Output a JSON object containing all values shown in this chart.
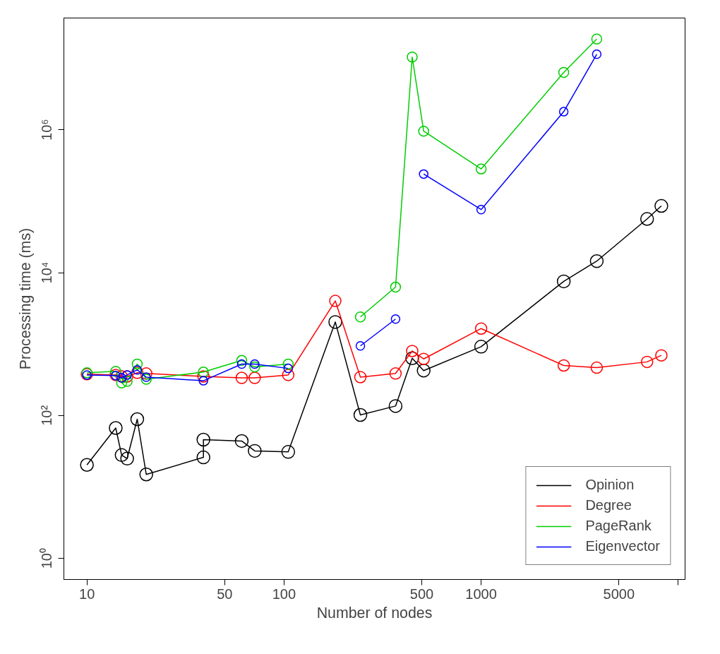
{
  "chart_data": {
    "type": "line",
    "xlabel": "Number of nodes",
    "ylabel": "Processing time (ms)",
    "log": "xy",
    "grid": false,
    "legend": "bottom right",
    "marker": "circle",
    "line_style": "solid",
    "xlim": [
      7.64,
      10830
    ],
    "ylim": [
      0.508,
      36600000
    ],
    "xticks": [
      10,
      50,
      100,
      500,
      1000,
      5000,
      {
        "value": 10000,
        "label": null
      }
    ],
    "yticks": [
      {
        "value": 1,
        "label": "10⁰"
      },
      {
        "value": 100,
        "label": "10²"
      },
      {
        "value": 10000,
        "label": "10⁴"
      },
      {
        "value": 1000000,
        "label": "10⁶"
      }
    ],
    "series": [
      {
        "name": "Opinion",
        "color": "#000000",
        "x": [
          10,
          14,
          15,
          16,
          18,
          20,
          39,
          39,
          61,
          71,
          105,
          182,
          244,
          368,
          447,
          511,
          1000,
          2625,
          3860,
          6950,
          8210
        ],
        "values": [
          20.4,
          67,
          28,
          25,
          89,
          15,
          26,
          46,
          44,
          32,
          31,
          2040,
          102,
          136,
          634,
          426,
          921,
          7550,
          14500,
          56400,
          85900
        ]
      },
      {
        "name": "Degree",
        "color": "#ff0000",
        "x": [
          10,
          14,
          15,
          16,
          18,
          20,
          39,
          61,
          71,
          105,
          182,
          244,
          368,
          447,
          511,
          1000,
          2625,
          3860,
          6950,
          8210
        ],
        "values": [
          379,
          370,
          353,
          353,
          397,
          388,
          353,
          337,
          337,
          370,
          4020,
          345,
          388,
          801,
          620,
          1650,
          502,
          468,
          564,
          696
        ]
      },
      {
        "name": "PageRank",
        "color": "#00cd00",
        "x": [
          10,
          14,
          15,
          16,
          18,
          20,
          39,
          61,
          71,
          105,
          182,
          244,
          368,
          447,
          511,
          1000,
          2625,
          3860
        ],
        "values": [
          397,
          416,
          286,
          300,
          526,
          322,
          406,
          591,
          479,
          526,
          null,
          2400,
          6270,
          10400000,
          955000,
          283000,
          6340000,
          18600000
        ]
      },
      {
        "name": "Eigenvector",
        "color": "#0000ff",
        "x": [
          10,
          14,
          15,
          16,
          18,
          20,
          39,
          61,
          71,
          105,
          182,
          244,
          368,
          447,
          511,
          1000,
          2625,
          3860
        ],
        "values": [
          370,
          362,
          337,
          370,
          436,
          345,
          307,
          526,
          526,
          457,
          null,
          944,
          2240,
          null,
          240000,
          76400,
          1790000,
          11400000
        ]
      }
    ]
  }
}
